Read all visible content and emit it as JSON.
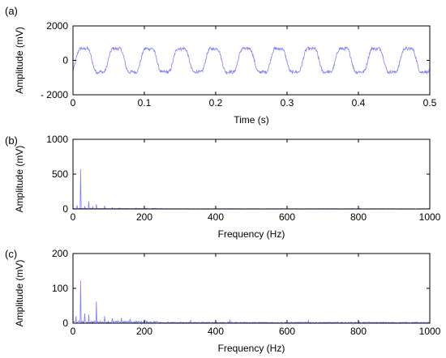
{
  "chart_data": [
    {
      "type": "line",
      "panel_label": "(a)",
      "xlabel": "Time (s)",
      "ylabel": "Amplitude (mV)",
      "xlim": [
        0,
        0.5
      ],
      "ylim": [
        -2000,
        2000
      ],
      "xticks": [
        "0",
        "0.1",
        "0.2",
        "0.3",
        "0.4",
        "0.5"
      ],
      "yticks": [
        "2000",
        "0",
        "- 2000"
      ],
      "line_color": "#7f7fff",
      "signal": {
        "frequency_hz": 22,
        "amplitude_mv": 800,
        "noise_mv": 90,
        "phase_offset_s": 0.004
      }
    },
    {
      "type": "line",
      "panel_label": "(b)",
      "xlabel": "Frequency (Hz)",
      "ylabel": "Amplitude (mV)",
      "xlim": [
        0,
        1000
      ],
      "ylim": [
        0,
        1000
      ],
      "xticks": [
        "0",
        "200",
        "400",
        "600",
        "800",
        "1000"
      ],
      "yticks": [
        "1000",
        "500",
        "0"
      ],
      "line_color": "#7f7fff",
      "peaks": [
        {
          "x": 11,
          "y": 55
        },
        {
          "x": 22,
          "y": 570
        },
        {
          "x": 33,
          "y": 40
        },
        {
          "x": 44,
          "y": 110
        },
        {
          "x": 55,
          "y": 35
        },
        {
          "x": 66,
          "y": 70
        },
        {
          "x": 88,
          "y": 45
        },
        {
          "x": 110,
          "y": 20
        },
        {
          "x": 130,
          "y": 15
        },
        {
          "x": 176,
          "y": 12
        },
        {
          "x": 230,
          "y": 10
        }
      ],
      "noise_floor": 6
    },
    {
      "type": "line",
      "panel_label": "(c)",
      "xlabel": "Frequency (Hz)",
      "ylabel": "Amplitude (mV)",
      "xlim": [
        0,
        1000
      ],
      "ylim": [
        0,
        200
      ],
      "xticks": [
        "0",
        "200",
        "400",
        "600",
        "800",
        "1000"
      ],
      "yticks": [
        "200",
        "100",
        "0"
      ],
      "line_color": "#7f7fff",
      "peaks": [
        {
          "x": 8,
          "y": 20
        },
        {
          "x": 22,
          "y": 122
        },
        {
          "x": 33,
          "y": 28
        },
        {
          "x": 44,
          "y": 25
        },
        {
          "x": 66,
          "y": 62
        },
        {
          "x": 88,
          "y": 20
        },
        {
          "x": 110,
          "y": 14
        },
        {
          "x": 135,
          "y": 15
        },
        {
          "x": 160,
          "y": 12
        },
        {
          "x": 200,
          "y": 10
        },
        {
          "x": 330,
          "y": 9
        },
        {
          "x": 440,
          "y": 10
        },
        {
          "x": 660,
          "y": 9
        },
        {
          "x": 800,
          "y": 8
        }
      ],
      "noise_floor": 4
    }
  ]
}
